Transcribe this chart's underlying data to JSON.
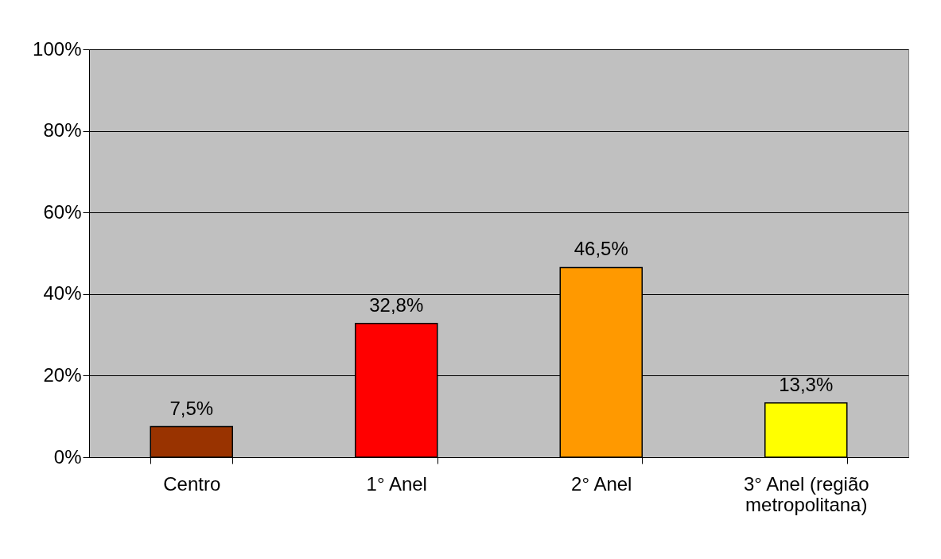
{
  "chart_data": {
    "type": "bar",
    "categories": [
      "Centro",
      "1° Anel",
      "2° Anel",
      "3° Anel (região metropolitana)"
    ],
    "values": [
      7.5,
      32.8,
      46.5,
      13.3
    ],
    "colors": [
      "#993300",
      "#ff0000",
      "#ff9900",
      "#ffff00"
    ],
    "value_labels": [
      "7,5%",
      "32,8%",
      "46,5%",
      "13,3%"
    ],
    "ylim": [
      0,
      100
    ],
    "yticks": [
      {
        "value": 0,
        "label": "0%"
      },
      {
        "value": 20,
        "label": "20%"
      },
      {
        "value": 40,
        "label": "40%"
      },
      {
        "value": 60,
        "label": "60%"
      },
      {
        "value": 80,
        "label": "80%"
      },
      {
        "value": 100,
        "label": "100%"
      }
    ],
    "grid": "y"
  }
}
